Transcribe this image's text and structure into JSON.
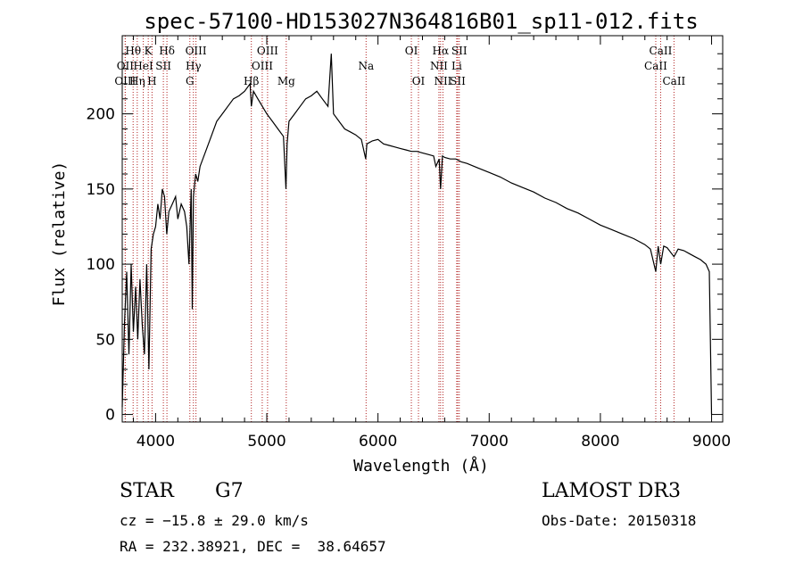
{
  "chart_data": {
    "type": "line",
    "title": "spec-57100-HD153027N364816B01_sp11-012.fits",
    "xlabel": "Wavelength (Å)",
    "ylabel": "Flux (relative)",
    "xlim": [
      3700,
      9100
    ],
    "ylim": [
      -5,
      252
    ],
    "xticks": [
      4000,
      5000,
      6000,
      7000,
      8000,
      9000
    ],
    "yticks": [
      0,
      50,
      100,
      150,
      200
    ],
    "series": [
      {
        "name": "flux",
        "x": [
          3700,
          3720,
          3740,
          3760,
          3780,
          3800,
          3820,
          3840,
          3860,
          3880,
          3900,
          3920,
          3940,
          3960,
          3980,
          4000,
          4020,
          4040,
          4060,
          4080,
          4100,
          4120,
          4150,
          4180,
          4200,
          4230,
          4260,
          4280,
          4300,
          4320,
          4330,
          4340,
          4360,
          4380,
          4400,
          4450,
          4500,
          4550,
          4600,
          4650,
          4700,
          4750,
          4800,
          4850,
          4861,
          4880,
          4920,
          4960,
          5000,
          5050,
          5100,
          5150,
          5172,
          5183,
          5200,
          5250,
          5300,
          5350,
          5400,
          5450,
          5500,
          5550,
          5580,
          5600,
          5650,
          5700,
          5750,
          5800,
          5850,
          5890,
          5900,
          5950,
          6000,
          6050,
          6100,
          6150,
          6200,
          6250,
          6300,
          6350,
          6400,
          6450,
          6500,
          6520,
          6550,
          6563,
          6580,
          6600,
          6650,
          6700,
          6750,
          6800,
          6900,
          7000,
          7100,
          7200,
          7300,
          7400,
          7500,
          7600,
          7700,
          7800,
          7900,
          8000,
          8100,
          8200,
          8300,
          8400,
          8450,
          8498,
          8520,
          8542,
          8570,
          8600,
          8662,
          8700,
          8750,
          8800,
          8850,
          8900,
          8950,
          8980,
          9000
        ],
        "values": [
          5,
          60,
          95,
          40,
          100,
          55,
          85,
          50,
          90,
          60,
          40,
          100,
          30,
          110,
          120,
          125,
          140,
          130,
          150,
          145,
          120,
          135,
          140,
          145,
          130,
          140,
          135,
          125,
          100,
          150,
          70,
          145,
          160,
          155,
          165,
          175,
          185,
          195,
          200,
          205,
          210,
          212,
          215,
          220,
          205,
          215,
          210,
          205,
          200,
          195,
          190,
          185,
          150,
          180,
          195,
          200,
          205,
          210,
          212,
          215,
          210,
          205,
          240,
          200,
          195,
          190,
          188,
          186,
          183,
          170,
          180,
          182,
          183,
          180,
          179,
          178,
          177,
          176,
          175,
          175,
          174,
          173,
          172,
          165,
          170,
          150,
          172,
          171,
          170,
          170,
          168,
          167,
          164,
          161,
          158,
          154,
          151,
          148,
          144,
          141,
          137,
          134,
          130,
          126,
          123,
          120,
          117,
          113,
          110,
          95,
          112,
          100,
          112,
          111,
          105,
          110,
          109,
          107,
          105,
          103,
          100,
          95,
          0
        ]
      }
    ],
    "spectral_lines": [
      {
        "label": "Hθ",
        "wl": 3798,
        "row": 1
      },
      {
        "label": "K",
        "wl": 3934,
        "row": 1
      },
      {
        "label": "Hδ",
        "wl": 4102,
        "row": 1
      },
      {
        "label": "OIII",
        "wl": 4363,
        "row": 1
      },
      {
        "label": "OIII",
        "wl": 5007,
        "row": 1
      },
      {
        "label": "OI",
        "wl": 6300,
        "row": 1
      },
      {
        "label": "Hα",
        "wl": 6563,
        "row": 1
      },
      {
        "label": "SII",
        "wl": 6731,
        "row": 1
      },
      {
        "label": "CaII",
        "wl": 8542,
        "row": 1
      },
      {
        "label": "OII",
        "wl": 3727,
        "row": 2
      },
      {
        "label": "HeI",
        "wl": 3889,
        "row": 2
      },
      {
        "label": "SII",
        "wl": 4070,
        "row": 2
      },
      {
        "label": "Hγ",
        "wl": 4340,
        "row": 2
      },
      {
        "label": "OIII",
        "wl": 4959,
        "row": 2
      },
      {
        "label": "Na",
        "wl": 5893,
        "row": 2
      },
      {
        "label": "NII",
        "wl": 6548,
        "row": 2
      },
      {
        "label": "Li",
        "wl": 6708,
        "row": 2
      },
      {
        "label": "CaII",
        "wl": 8498,
        "row": 2
      },
      {
        "label": "OIII",
        "wl": 3727,
        "row": 3
      },
      {
        "label": "Hη",
        "wl": 3835,
        "row": 3
      },
      {
        "label": "H",
        "wl": 3968,
        "row": 3
      },
      {
        "label": "G",
        "wl": 4308,
        "row": 3
      },
      {
        "label": "Hβ",
        "wl": 4861,
        "row": 3
      },
      {
        "label": "Mg",
        "wl": 5175,
        "row": 3
      },
      {
        "label": "OI",
        "wl": 6364,
        "row": 3
      },
      {
        "label": "NII",
        "wl": 6584,
        "row": 3
      },
      {
        "label": "SII",
        "wl": 6717,
        "row": 3
      },
      {
        "label": "CaII",
        "wl": 8662,
        "row": 3
      }
    ]
  },
  "info": {
    "object_class": "STAR",
    "subclass": "G7",
    "survey": "LAMOST DR3",
    "cz": "cz = −15.8 ± 29.0 km/s",
    "obs_date": "Obs-Date: 20150318",
    "radec": "RA = 232.38921, DEC =  38.64657"
  },
  "colors": {
    "line_marker": "#b22222",
    "spectrum": "#000000"
  }
}
